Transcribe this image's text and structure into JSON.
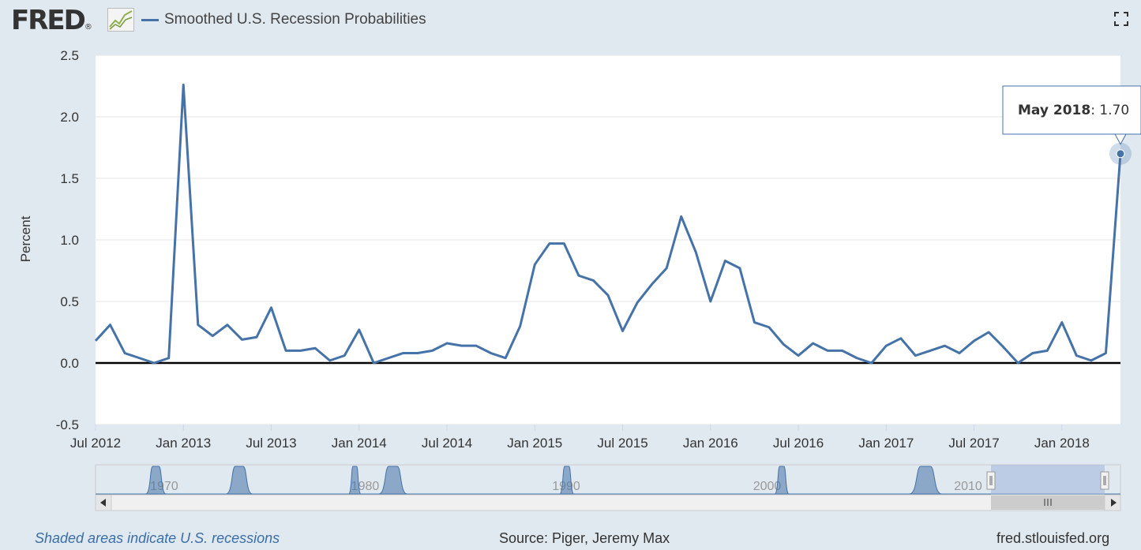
{
  "header": {
    "brand": "FRED",
    "brand_registered": "®",
    "series_title": "Smoothed U.S. Recession Probabilities",
    "fullscreen_icon": "fullscreen-icon"
  },
  "tooltip": {
    "date": "May 2018",
    "sep": ": ",
    "value": "1.70"
  },
  "navigator": {
    "decade_labels": [
      "1970",
      "1980",
      "1990",
      "2000",
      "2010"
    ],
    "decade_values": [
      1970,
      1980,
      1990,
      2000,
      2010
    ],
    "scroll_left_icon": "arrow-left-icon",
    "scroll_right_icon": "arrow-right-icon",
    "handle_icon": "grip-icon",
    "recessions": [
      [
        1969.9,
        1970.9
      ],
      [
        1973.9,
        1975.2
      ],
      [
        1980.0,
        1980.6
      ],
      [
        1981.5,
        1982.9
      ],
      [
        1990.5,
        1991.2
      ],
      [
        2001.2,
        2001.9
      ],
      [
        2007.9,
        2009.5
      ]
    ]
  },
  "footer": {
    "note": "Shaded areas indicate U.S. recessions",
    "source": "Source: Piger, Jeremy Max",
    "site": "fred.stlouisfed.org"
  },
  "colors": {
    "line": "#4572a7",
    "background": "#e1e9f0",
    "plot": "#ffffff"
  },
  "chart_data": {
    "type": "line",
    "title": "Smoothed U.S. Recession Probabilities",
    "ylabel": "Percent",
    "ylim": [
      -0.5,
      2.5
    ],
    "yticks": [
      -0.5,
      0.0,
      0.5,
      1.0,
      1.5,
      2.0,
      2.5
    ],
    "ytick_labels": [
      "-0.5",
      "0.0",
      "0.5",
      "1.0",
      "1.5",
      "2.0",
      "2.5"
    ],
    "xlim": [
      "2012-07",
      "2018-05"
    ],
    "xticks": [
      "2012-07",
      "2013-01",
      "2013-07",
      "2014-01",
      "2014-07",
      "2015-01",
      "2015-07",
      "2016-01",
      "2016-07",
      "2017-01",
      "2017-07",
      "2018-01"
    ],
    "xtick_labels": [
      "Jul 2012",
      "Jan 2013",
      "Jul 2013",
      "Jan 2014",
      "Jul 2014",
      "Jan 2015",
      "Jul 2015",
      "Jan 2016",
      "Jul 2016",
      "Jan 2017",
      "Jul 2017",
      "Jan 2018"
    ],
    "grid": true,
    "series": [
      {
        "name": "Smoothed U.S. Recession Probabilities",
        "x": [
          "2012-07",
          "2012-08",
          "2012-09",
          "2012-10",
          "2012-11",
          "2012-12",
          "2013-01",
          "2013-02",
          "2013-03",
          "2013-04",
          "2013-05",
          "2013-06",
          "2013-07",
          "2013-08",
          "2013-09",
          "2013-10",
          "2013-11",
          "2013-12",
          "2014-01",
          "2014-02",
          "2014-03",
          "2014-04",
          "2014-05",
          "2014-06",
          "2014-07",
          "2014-08",
          "2014-09",
          "2014-10",
          "2014-11",
          "2014-12",
          "2015-01",
          "2015-02",
          "2015-03",
          "2015-04",
          "2015-05",
          "2015-06",
          "2015-07",
          "2015-08",
          "2015-09",
          "2015-10",
          "2015-11",
          "2015-12",
          "2016-01",
          "2016-02",
          "2016-03",
          "2016-04",
          "2016-05",
          "2016-06",
          "2016-07",
          "2016-08",
          "2016-09",
          "2016-10",
          "2016-11",
          "2016-12",
          "2017-01",
          "2017-02",
          "2017-03",
          "2017-04",
          "2017-05",
          "2017-06",
          "2017-07",
          "2017-08",
          "2017-09",
          "2017-10",
          "2017-11",
          "2017-12",
          "2018-01",
          "2018-02",
          "2018-03",
          "2018-04",
          "2018-05"
        ],
        "values": [
          0.18,
          0.31,
          0.08,
          0.04,
          0.0,
          0.04,
          2.26,
          0.31,
          0.22,
          0.31,
          0.19,
          0.21,
          0.45,
          0.1,
          0.1,
          0.12,
          0.02,
          0.06,
          0.27,
          0.0,
          0.04,
          0.08,
          0.08,
          0.1,
          0.16,
          0.14,
          0.14,
          0.08,
          0.04,
          0.3,
          0.8,
          0.97,
          0.97,
          0.71,
          0.67,
          0.55,
          0.26,
          0.49,
          0.64,
          0.77,
          1.19,
          0.9,
          0.5,
          0.83,
          0.77,
          0.33,
          0.29,
          0.15,
          0.06,
          0.16,
          0.1,
          0.1,
          0.04,
          0.0,
          0.14,
          0.2,
          0.06,
          0.1,
          0.14,
          0.08,
          0.18,
          0.25,
          0.13,
          0.0,
          0.08,
          0.1,
          0.33,
          0.06,
          0.02,
          0.08,
          1.7
        ]
      }
    ],
    "highlight": {
      "x": "2018-05",
      "value": 1.7
    }
  }
}
